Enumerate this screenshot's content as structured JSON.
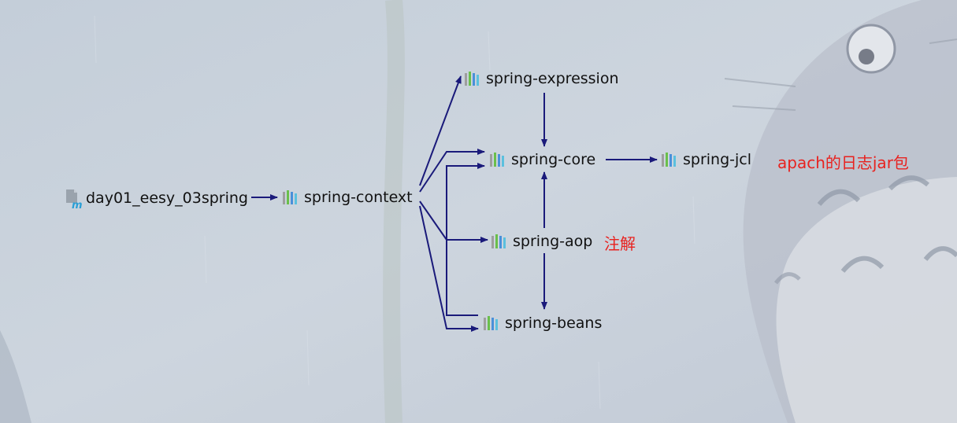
{
  "nodes": {
    "root": {
      "label": "day01_eesy_03spring"
    },
    "context": {
      "label": "spring-context"
    },
    "expression": {
      "label": "spring-expression"
    },
    "core": {
      "label": "spring-core"
    },
    "jcl": {
      "label": "spring-jcl"
    },
    "aop": {
      "label": "spring-aop"
    },
    "beans": {
      "label": "spring-beans"
    }
  },
  "notes": {
    "jcl_note": "apach的日志jar包",
    "aop_note": "注解"
  },
  "edges": [
    {
      "from": "root",
      "to": "context"
    },
    {
      "from": "context",
      "to": "expression"
    },
    {
      "from": "context",
      "to": "core"
    },
    {
      "from": "context",
      "to": "aop"
    },
    {
      "from": "context",
      "to": "beans"
    },
    {
      "from": "expression",
      "to": "core"
    },
    {
      "from": "core",
      "to": "jcl"
    },
    {
      "from": "aop",
      "to": "core"
    },
    {
      "from": "aop",
      "to": "beans"
    },
    {
      "from": "beans",
      "to": "core"
    }
  ],
  "colors": {
    "edge": "#1a1a7a",
    "note": "#e8221f",
    "library_icon": [
      "#9e9e9e",
      "#6abf4b",
      "#4a90d9",
      "#5bc0de"
    ]
  },
  "icons": {
    "library": "library-bars-icon",
    "module": "maven-module-icon"
  }
}
